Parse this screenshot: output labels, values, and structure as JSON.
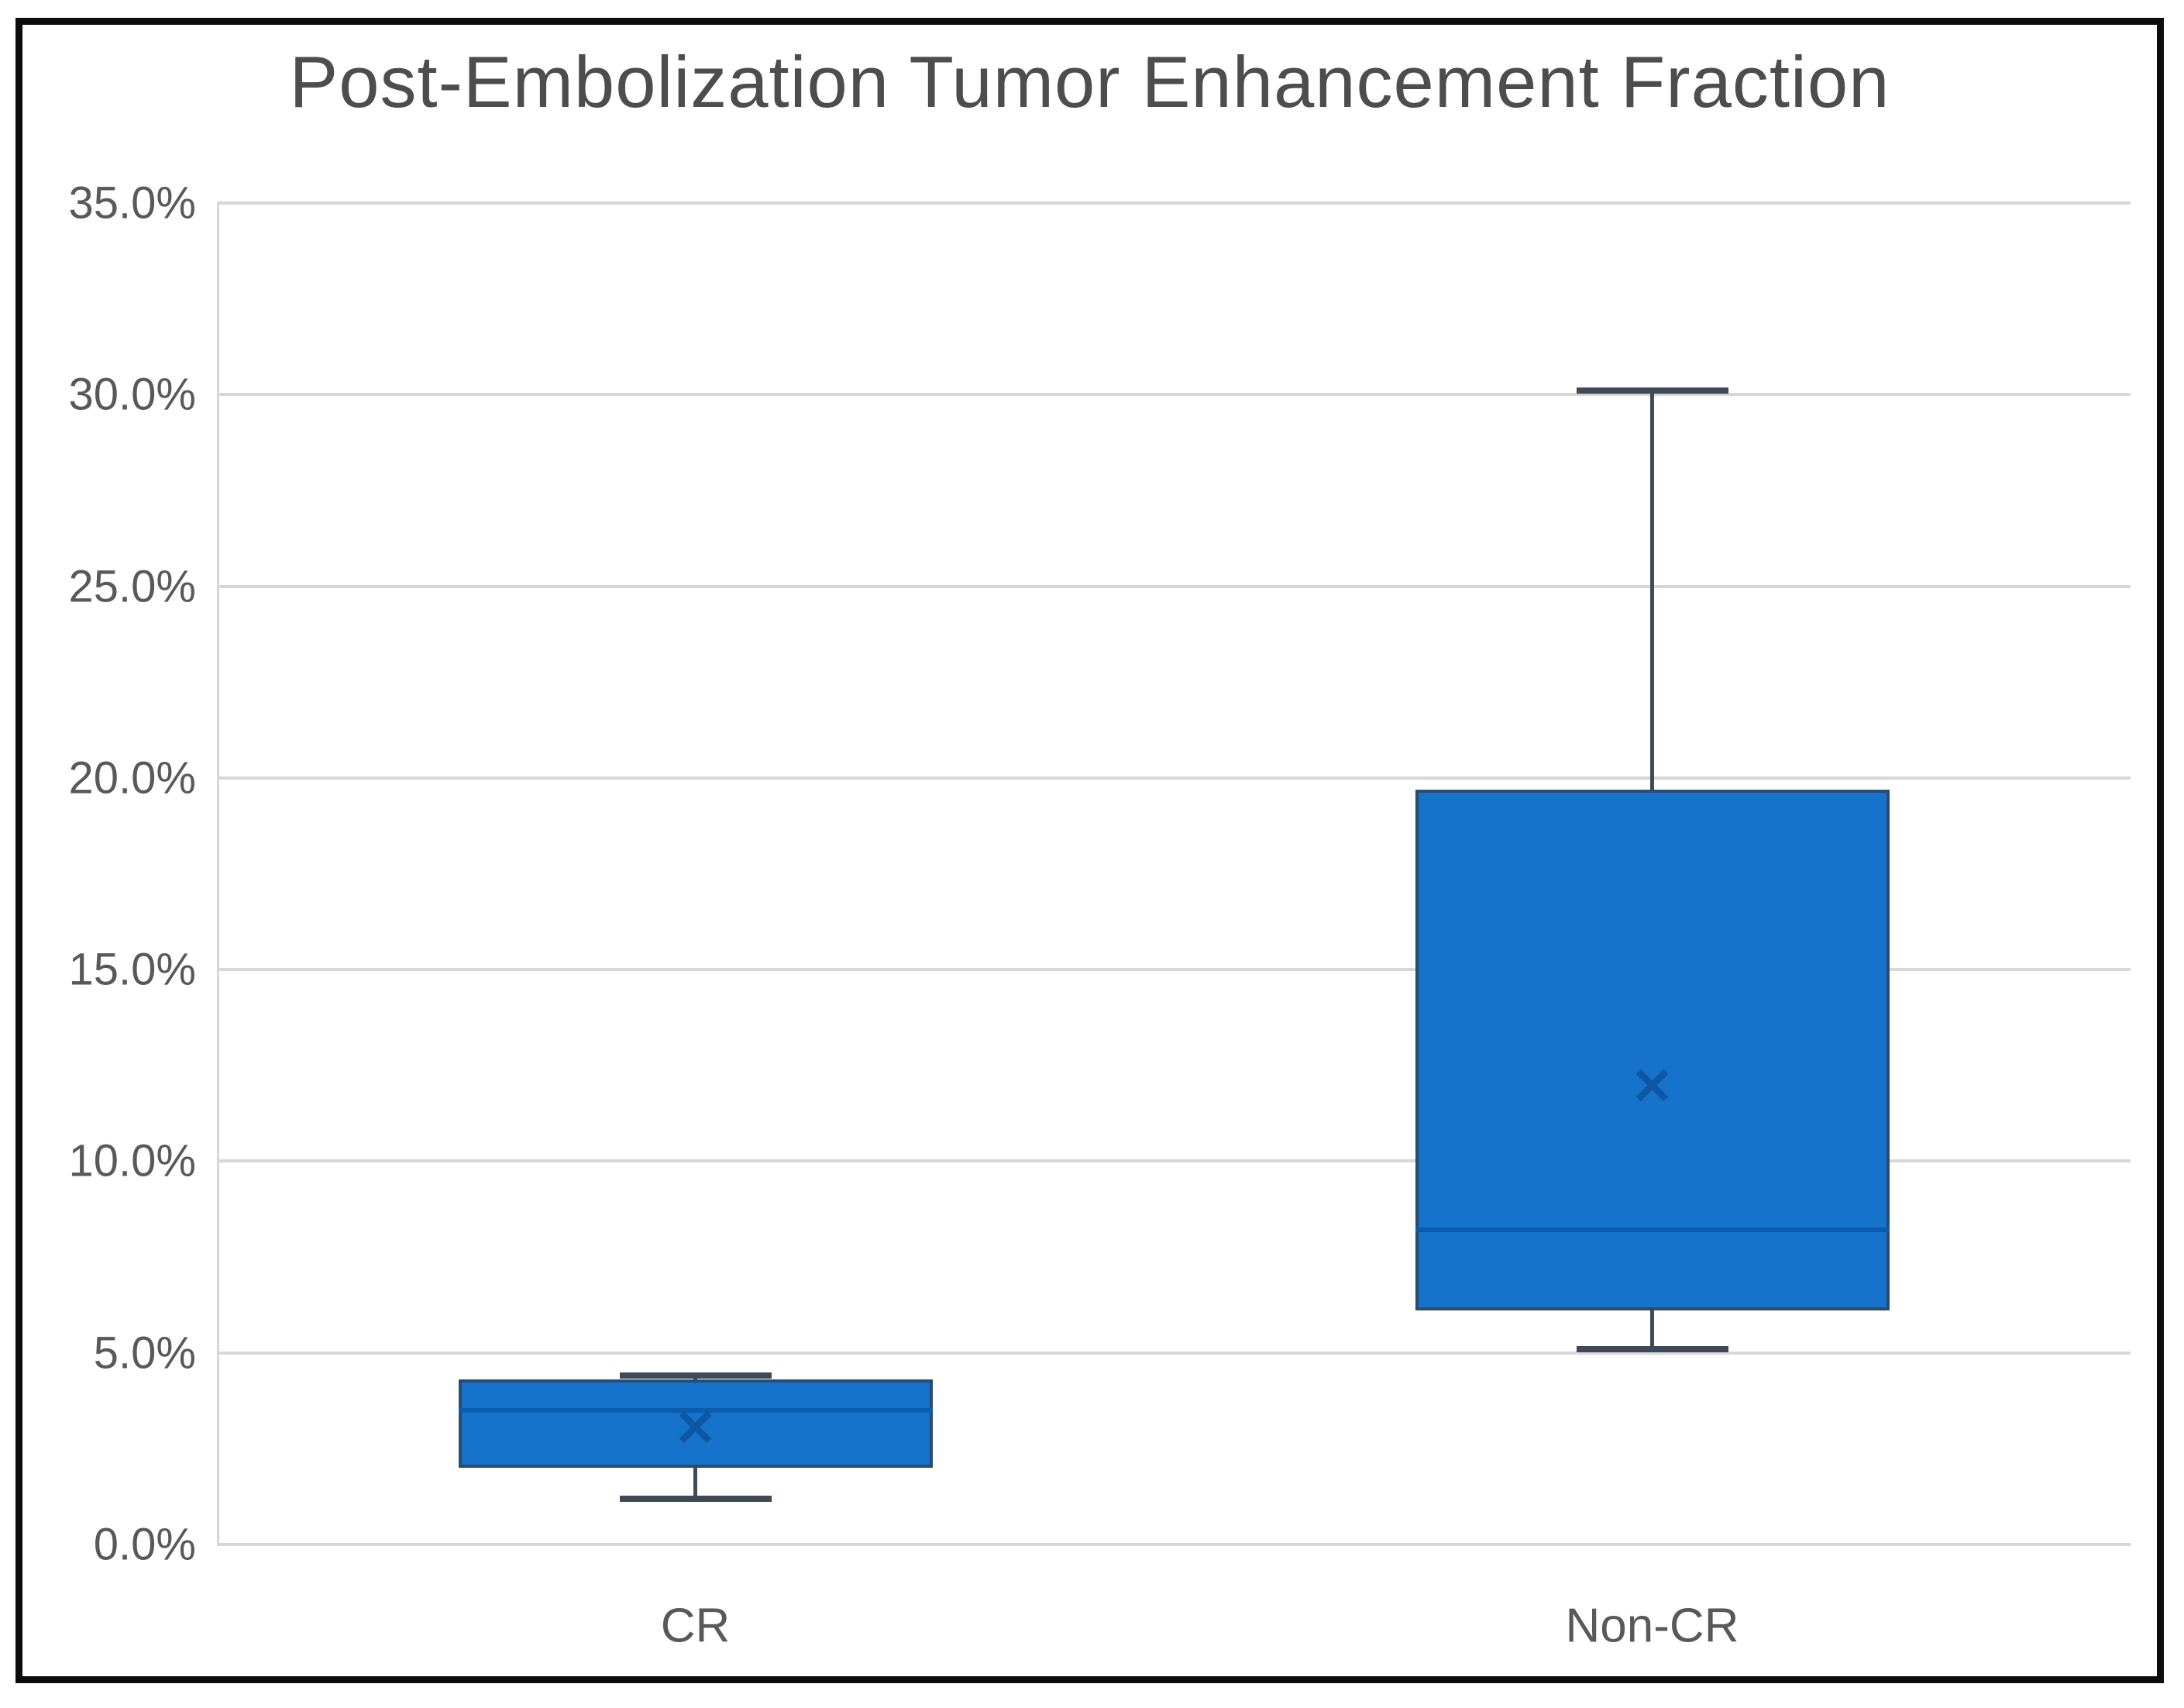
{
  "chart_data": {
    "type": "box",
    "title": "Post-Embolization Tumor Enhancement Fraction",
    "categories": [
      "CR",
      "Non-CR"
    ],
    "unit": "%",
    "ylim": [
      0,
      35
    ],
    "grid": true,
    "legend": false,
    "y_axis": {
      "ticks": [
        {
          "value": 0,
          "label": "0.0%"
        },
        {
          "value": 5,
          "label": "5.0%"
        },
        {
          "value": 10,
          "label": "10.0%"
        },
        {
          "value": 15,
          "label": "15.0%"
        },
        {
          "value": 20,
          "label": "20.0%"
        },
        {
          "value": 25,
          "label": "25.0%"
        },
        {
          "value": 30,
          "label": "30.0%"
        },
        {
          "value": 35,
          "label": "35.0%"
        }
      ]
    },
    "series": [
      {
        "name": "CR",
        "min": 1.2,
        "q1": 2.0,
        "median": 3.5,
        "q3": 4.3,
        "max": 4.4,
        "mean": 3.0
      },
      {
        "name": "Non-CR",
        "min": 5.1,
        "q1": 6.1,
        "median": 8.2,
        "q3": 19.7,
        "max": 30.1,
        "mean": 11.9
      }
    ],
    "colors": {
      "box_fill": "#1673cb",
      "box_border": "#2b4b6f",
      "median_line": "#0b5cad",
      "whisker": "#3f4a57",
      "mean_marker": "#0d57a4",
      "gridline": "#d7d7d7",
      "axis_text": "#595959",
      "title_text": "#4d4d4d",
      "frame_border": "#0c0c0c",
      "background": "#ffffff"
    },
    "mean_marker_glyph": "✕"
  }
}
